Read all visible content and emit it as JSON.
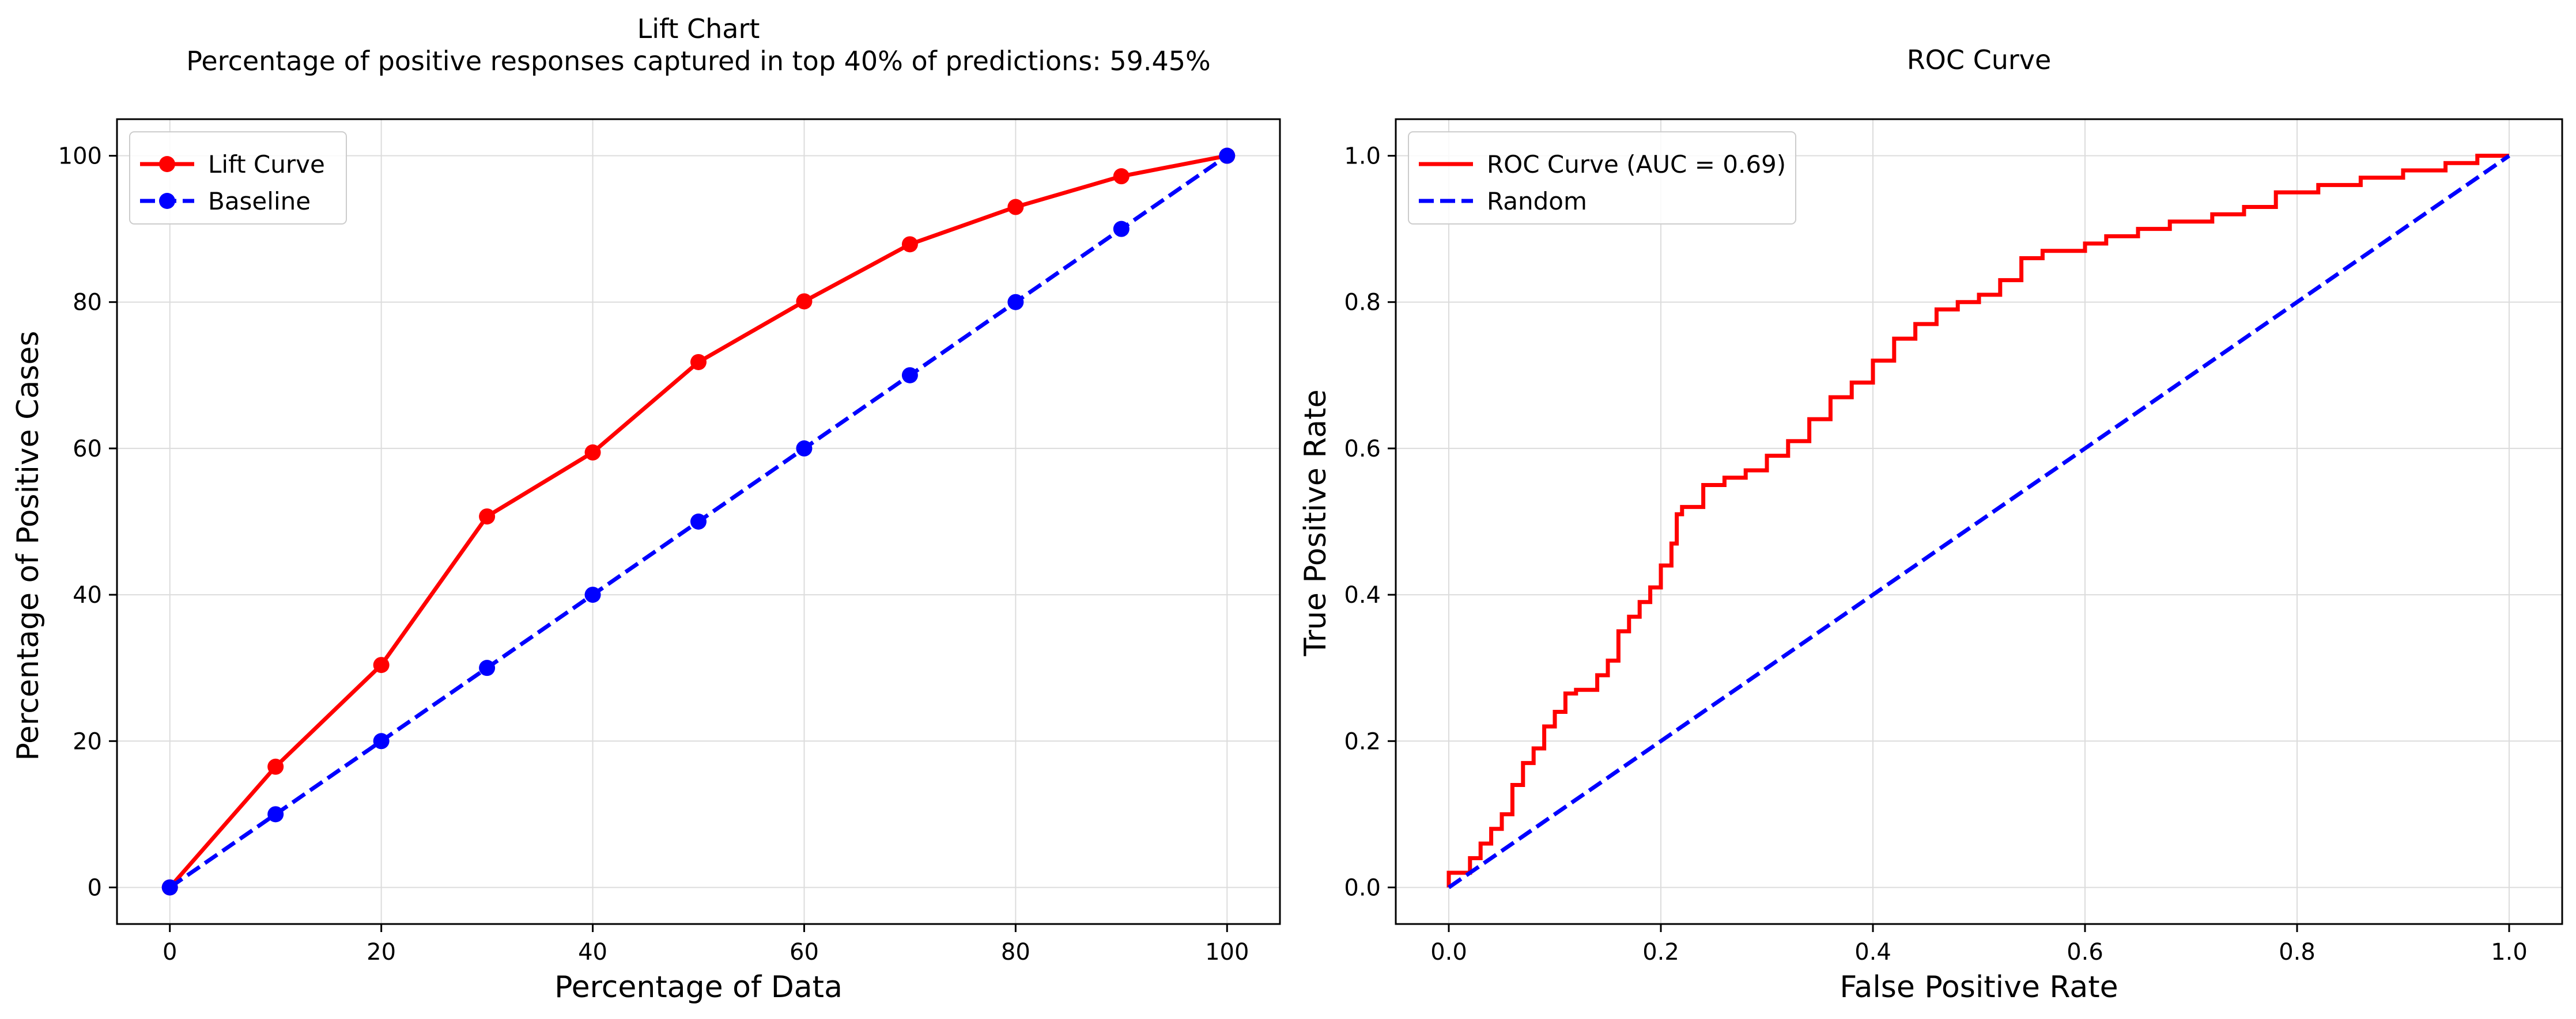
{
  "chart_data": [
    {
      "type": "line",
      "title": "Lift Chart",
      "subtitle": "Percentage of positive responses captured in top 40% of predictions: 59.45%",
      "xlabel": "Percentage of Data",
      "ylabel": "Percentage of Positive Cases",
      "xlim": [
        -5,
        105
      ],
      "ylim": [
        -5,
        105
      ],
      "xticks": [
        0,
        20,
        40,
        60,
        80,
        100
      ],
      "yticks": [
        0,
        20,
        40,
        60,
        80,
        100
      ],
      "xtick_labels": [
        "0",
        "20",
        "40",
        "60",
        "80",
        "100"
      ],
      "ytick_labels": [
        "0",
        "20",
        "40",
        "60",
        "80",
        "100"
      ],
      "grid": true,
      "legend_position": "top-left",
      "series": [
        {
          "name": "Lift Curve",
          "color": "#ff0000",
          "line_style": "solid",
          "marker": "circle",
          "x": [
            0,
            10,
            20,
            30,
            40,
            50,
            60,
            70,
            80,
            90,
            100
          ],
          "y": [
            0,
            16.5,
            30.4,
            50.7,
            59.45,
            71.8,
            80.1,
            87.9,
            93.0,
            97.2,
            100
          ]
        },
        {
          "name": "Baseline",
          "color": "#0000ff",
          "line_style": "dashed",
          "marker": "circle",
          "x": [
            0,
            10,
            20,
            30,
            40,
            50,
            60,
            70,
            80,
            90,
            100
          ],
          "y": [
            0,
            10,
            20,
            30,
            40,
            50,
            60,
            70,
            80,
            90,
            100
          ]
        }
      ]
    },
    {
      "type": "line",
      "title": "ROC Curve",
      "xlabel": "False Positive Rate",
      "ylabel": "True Positive Rate",
      "xlim": [
        -0.05,
        1.05
      ],
      "ylim": [
        -0.05,
        1.05
      ],
      "xticks": [
        0,
        0.2,
        0.4,
        0.6,
        0.8,
        1.0
      ],
      "yticks": [
        0,
        0.2,
        0.4,
        0.6,
        0.8,
        1.0
      ],
      "xtick_labels": [
        "0.0",
        "0.2",
        "0.4",
        "0.6",
        "0.8",
        "1.0"
      ],
      "ytick_labels": [
        "0.0",
        "0.2",
        "0.4",
        "0.6",
        "0.8",
        "1.0"
      ],
      "grid": true,
      "legend_position": "top-left",
      "series": [
        {
          "name": "ROC Curve (AUC = 0.69)",
          "color": "#ff0000",
          "line_style": "solid",
          "marker": "none",
          "step": true,
          "x": [
            0,
            0,
            0.02,
            0.02,
            0.03,
            0.03,
            0.04,
            0.04,
            0.05,
            0.05,
            0.06,
            0.06,
            0.07,
            0.07,
            0.08,
            0.08,
            0.09,
            0.09,
            0.1,
            0.1,
            0.11,
            0.11,
            0.12,
            0.12,
            0.14,
            0.14,
            0.15,
            0.15,
            0.16,
            0.16,
            0.17,
            0.17,
            0.18,
            0.18,
            0.19,
            0.19,
            0.2,
            0.2,
            0.21,
            0.21,
            0.215,
            0.215,
            0.22,
            0.22,
            0.24,
            0.24,
            0.26,
            0.26,
            0.28,
            0.28,
            0.3,
            0.3,
            0.32,
            0.32,
            0.34,
            0.34,
            0.36,
            0.36,
            0.38,
            0.38,
            0.4,
            0.4,
            0.42,
            0.42,
            0.44,
            0.44,
            0.46,
            0.46,
            0.48,
            0.48,
            0.5,
            0.5,
            0.52,
            0.52,
            0.54,
            0.54,
            0.56,
            0.56,
            0.6,
            0.6,
            0.62,
            0.62,
            0.65,
            0.65,
            0.68,
            0.68,
            0.72,
            0.72,
            0.75,
            0.75,
            0.78,
            0.78,
            0.82,
            0.82,
            0.86,
            0.86,
            0.9,
            0.9,
            0.94,
            0.94,
            0.97,
            0.97,
            1.0
          ],
          "y": [
            0,
            0.02,
            0.02,
            0.04,
            0.04,
            0.06,
            0.06,
            0.08,
            0.08,
            0.1,
            0.1,
            0.14,
            0.14,
            0.17,
            0.17,
            0.19,
            0.19,
            0.22,
            0.22,
            0.24,
            0.24,
            0.265,
            0.265,
            0.27,
            0.27,
            0.29,
            0.29,
            0.31,
            0.31,
            0.35,
            0.35,
            0.37,
            0.37,
            0.39,
            0.39,
            0.41,
            0.41,
            0.44,
            0.44,
            0.47,
            0.47,
            0.51,
            0.51,
            0.52,
            0.52,
            0.55,
            0.55,
            0.56,
            0.56,
            0.57,
            0.57,
            0.59,
            0.59,
            0.61,
            0.61,
            0.64,
            0.64,
            0.67,
            0.67,
            0.69,
            0.69,
            0.72,
            0.72,
            0.75,
            0.75,
            0.77,
            0.77,
            0.79,
            0.79,
            0.8,
            0.8,
            0.81,
            0.81,
            0.83,
            0.83,
            0.86,
            0.86,
            0.87,
            0.87,
            0.88,
            0.88,
            0.89,
            0.89,
            0.9,
            0.9,
            0.91,
            0.91,
            0.92,
            0.92,
            0.93,
            0.93,
            0.95,
            0.95,
            0.96,
            0.96,
            0.97,
            0.97,
            0.98,
            0.98,
            0.99,
            0.99,
            1.0,
            1.0
          ]
        },
        {
          "name": "Random",
          "color": "#0000ff",
          "line_style": "dashed",
          "marker": "none",
          "x": [
            0,
            1
          ],
          "y": [
            0,
            1
          ]
        }
      ]
    }
  ]
}
